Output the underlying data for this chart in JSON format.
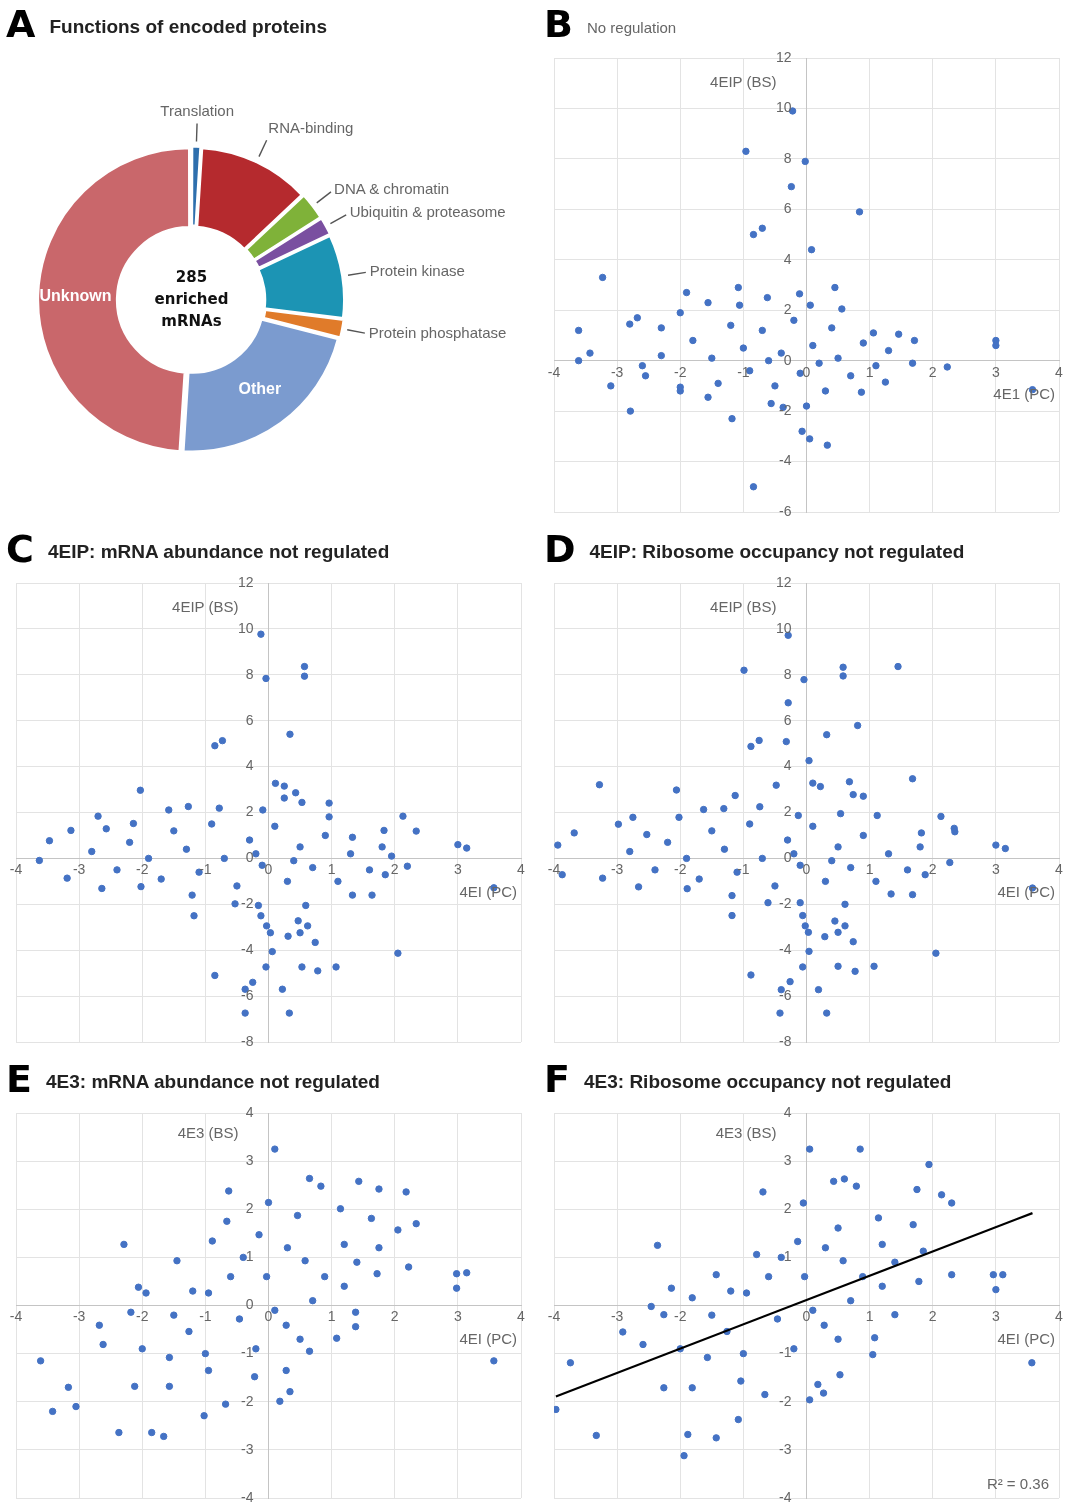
{
  "chart_data": [
    {
      "type": "donut",
      "title": "Functions of encoded proteins",
      "annotations": [
        "A",
        "285 enriched mRNAs"
      ],
      "categories": [
        "Translation",
        "RNA-binding",
        "DNA & chromatin",
        "Ubiquitin & proteasome",
        "Protein kinase",
        "Protein phosphatase",
        "Other",
        "Unknown"
      ],
      "values": [
        1,
        12,
        3,
        2,
        9,
        2,
        22,
        49
      ],
      "colors": [
        "#2e6fad",
        "#b52a2e",
        "#7fb239",
        "#7a4fa0",
        "#1c94b4",
        "#e07b2a",
        "#7b9bcf",
        "#c9676b"
      ]
    },
    {
      "type": "scatter",
      "subtitle": "No regulation",
      "annotations": [
        "B"
      ],
      "xlabel": "4E1 (PC)",
      "ylabel": "4EIP (BS)",
      "xlim": [
        -4,
        4
      ],
      "ylim": [
        -6,
        12
      ],
      "xticks": [
        -4,
        -3,
        -2,
        -1,
        0,
        1,
        2,
        3,
        4
      ],
      "yticks": [
        -6,
        -4,
        -2,
        0,
        2,
        4,
        6,
        8,
        10,
        12
      ],
      "grid": true,
      "marker": "circle",
      "series": [
        {
          "color": "#4472c4",
          "x": [
            -0.22,
            -0.96,
            -0.02,
            -0.24,
            0.84,
            -0.84,
            -0.7,
            0.08,
            -3.23,
            -1.08,
            -1.9,
            0.45,
            -0.11,
            3.0,
            3.0,
            3.58,
            2.23,
            -2.79,
            -1.18,
            -0.07,
            0.05,
            0.33,
            -0.84,
            -3.61,
            -3.61,
            -3.43,
            -3.1,
            -2.55,
            -2.0,
            -1.56,
            -0.56,
            -0.37,
            0,
            0.87,
            1.25,
            1.68,
            1.71,
            1.46,
            1.06,
            0.56,
            0.06,
            -0.62,
            -1.06,
            -1.56,
            -2.0,
            -2.3,
            -2.68,
            -2.8,
            -2.3,
            -2.0,
            -1.8,
            -1.5,
            -1.4,
            -1.2,
            -1.0,
            -0.9,
            -0.7,
            -0.5,
            -0.4,
            -0.2,
            -0.1,
            0.1,
            0.3,
            0.4,
            0.5,
            0.7,
            0.9,
            1.1,
            1.3,
            -2.6,
            0.2,
            -0.6
          ],
          "values": [
            9.9,
            8.3,
            7.9,
            6.9,
            5.9,
            5.0,
            5.25,
            4.4,
            3.3,
            2.9,
            2.7,
            2.9,
            2.65,
            0.8,
            0.6,
            -1.15,
            -0.25,
            -2.0,
            -2.3,
            -2.8,
            -3.1,
            -3.35,
            -5.0,
            1.2,
            0.0,
            0.3,
            -1.0,
            -0.6,
            -1.2,
            -1.45,
            -1.7,
            -1.85,
            -1.8,
            -1.25,
            -0.85,
            -0.1,
            0.8,
            1.05,
            1.1,
            2.05,
            2.2,
            2.5,
            2.2,
            2.3,
            1.9,
            1.3,
            1.7,
            1.45,
            0.2,
            -1.05,
            0.8,
            0.1,
            -0.9,
            1.4,
            0.5,
            -0.4,
            1.2,
            -1.0,
            0.3,
            1.6,
            -0.5,
            0.6,
            -1.2,
            1.3,
            0.1,
            -0.6,
            0.7,
            -0.2,
            0.4,
            -0.2,
            -0.1,
            0.0
          ]
        }
      ]
    },
    {
      "type": "scatter",
      "title": "4EIP: mRNA abundance not regulated",
      "annotations": [
        "C"
      ],
      "xlabel": "4EI (PC)",
      "ylabel": "4EIP (BS)",
      "xlim": [
        -4,
        4
      ],
      "ylim": [
        -8,
        12
      ],
      "xticks": [
        -4,
        -3,
        -2,
        -1,
        0,
        1,
        2,
        3,
        4
      ],
      "yticks": [
        -8,
        -6,
        -4,
        -2,
        0,
        2,
        4,
        6,
        8,
        10,
        12
      ],
      "grid": true,
      "marker": "circle",
      "series": [
        {
          "color": "#4472c4",
          "x": [
            -0.12,
            0.57,
            0.57,
            -0.04,
            0.34,
            -0.85,
            -0.73,
            -2.03,
            0.11,
            0.25,
            0.25,
            0.43,
            0.53,
            0.96,
            2.13,
            2.34,
            1.83,
            3.0,
            3.14,
            3.57,
            2.05,
            -1.18,
            -0.12,
            -0.03,
            0.03,
            0.47,
            0.62,
            0.31,
            0.5,
            0.74,
            0.06,
            -0.04,
            0.53,
            0.78,
            1.07,
            -0.85,
            -0.25,
            -0.37,
            0.22,
            -0.37,
            0.33,
            -3.63,
            -3.47,
            -3.19,
            -2.64,
            -2.7,
            -2.57,
            -2.02,
            -1.21,
            -0.53,
            -0.16,
            0.59,
            1.33,
            1.64,
            1.85,
            2.2,
            1.95,
            1.33,
            0.96,
            -0.09,
            -0.78,
            -1.27,
            -1.58,
            -2.14,
            -3.13,
            -2.8,
            -2.4,
            -2.2,
            -1.9,
            -1.7,
            -1.5,
            -1.3,
            -1.1,
            -0.9,
            -0.7,
            -0.5,
            -0.3,
            -0.1,
            0.1,
            0.3,
            0.5,
            0.7,
            0.9,
            1.1,
            1.3,
            1.6,
            1.8,
            -0.2,
            0.4
          ],
          "values": [
            9.77,
            8.36,
            7.94,
            7.84,
            5.41,
            4.91,
            5.13,
            2.97,
            3.27,
            3.15,
            2.63,
            2.86,
            2.44,
            2.41,
            1.84,
            1.19,
            1.22,
            0.6,
            0.45,
            -1.28,
            -4.13,
            -2.5,
            -2.5,
            -2.94,
            -3.24,
            -2.72,
            -2.94,
            -3.39,
            -3.24,
            -3.66,
            -4.06,
            -4.73,
            -4.73,
            -4.9,
            -4.73,
            -5.1,
            -5.4,
            -5.7,
            -5.7,
            -6.74,
            -6.74,
            -0.09,
            0.77,
            -0.86,
            -1.31,
            1.84,
            1.29,
            -1.23,
            -1.6,
            -1.98,
            -2.05,
            -2.05,
            -1.6,
            -1.6,
            -0.71,
            -0.34,
            0.1,
            0.92,
            1.81,
            2.11,
            2.19,
            2.26,
            2.11,
            1.52,
            1.22,
            0.3,
            -0.5,
            0.7,
            0.0,
            -0.9,
            1.2,
            0.4,
            -0.6,
            1.5,
            0.0,
            -1.2,
            0.8,
            -0.3,
            1.4,
            -1.0,
            0.5,
            -0.4,
            1.0,
            -1.0,
            0.2,
            -0.5,
            0.5,
            0.2,
            -0.1
          ]
        }
      ]
    },
    {
      "type": "scatter",
      "title": "4EIP: Ribosome occupancy not regulated",
      "annotations": [
        "D"
      ],
      "xlabel": "4EI (PC)",
      "ylabel": "4EIP (BS)",
      "xlim": [
        -4,
        4
      ],
      "ylim": [
        -8,
        12
      ],
      "xticks": [
        -4,
        -3,
        -2,
        -1,
        0,
        1,
        2,
        3,
        4
      ],
      "yticks": [
        -8,
        -6,
        -4,
        -2,
        0,
        2,
        4,
        6,
        8,
        10,
        12
      ],
      "grid": true,
      "marker": "circle",
      "series": [
        {
          "color": "#4472c4",
          "x": [
            -0.29,
            -0.99,
            0.58,
            0.58,
            1.45,
            -0.04,
            -0.29,
            0.81,
            0.32,
            -0.88,
            -0.75,
            -0.32,
            0.04,
            -3.28,
            -2.06,
            -0.48,
            -1.13,
            0.1,
            0.22,
            0.68,
            1.68,
            0.74,
            0.9,
            2.13,
            2.34,
            2.35,
            3.0,
            3.15,
            3.58,
            2.05,
            -1.18,
            -0.06,
            -0.02,
            0.03,
            0.29,
            0.45,
            0.61,
            0.5,
            0.74,
            0.04,
            -0.06,
            0.5,
            0.77,
            1.07,
            -0.88,
            -0.26,
            -0.4,
            0.19,
            -0.42,
            0.32,
            -3.94,
            -3.68,
            -3.87,
            -3.23,
            -2.66,
            -2.98,
            -2.75,
            -2.53,
            -1.89,
            -1.18,
            -0.61,
            -0.1,
            0.61,
            1.34,
            1.68,
            1.88,
            2.27,
            1.82,
            1.12,
            0.54,
            -0.13,
            -0.74,
            -1.31,
            -1.63,
            -2.02,
            -2.8,
            -2.4,
            -2.2,
            -1.9,
            -1.7,
            -1.5,
            -1.3,
            -1.1,
            -0.9,
            -0.7,
            -0.5,
            -0.3,
            -0.1,
            0.1,
            0.3,
            0.5,
            0.7,
            0.9,
            1.1,
            1.3,
            1.6,
            1.8,
            -0.2,
            0.4
          ],
          "values": [
            9.72,
            8.2,
            8.33,
            7.95,
            8.36,
            7.79,
            6.78,
            5.79,
            5.39,
            4.88,
            5.14,
            5.09,
            4.26,
            3.21,
            2.98,
            3.19,
            2.74,
            3.28,
            3.13,
            3.34,
            3.47,
            2.78,
            2.71,
            1.83,
            1.31,
            1.16,
            0.58,
            0.43,
            -1.29,
            -4.13,
            -2.49,
            -2.49,
            -2.94,
            -3.22,
            -3.41,
            -2.73,
            -2.94,
            -3.22,
            -3.63,
            -4.05,
            -4.73,
            -4.7,
            -4.92,
            -4.7,
            -5.08,
            -5.37,
            -5.72,
            -5.72,
            -6.74,
            -6.74,
            0.58,
            1.11,
            -0.71,
            -0.86,
            -1.24,
            1.49,
            1.79,
            1.04,
            -1.32,
            -1.62,
            -1.93,
            -1.93,
            -2.0,
            -1.55,
            -1.58,
            -0.71,
            -0.18,
            1.11,
            1.87,
            1.95,
            1.87,
            2.25,
            2.17,
            2.13,
            1.79,
            0.3,
            -0.5,
            0.7,
            0.0,
            -0.9,
            1.2,
            0.4,
            -0.6,
            1.5,
            0.0,
            -1.2,
            0.8,
            -0.3,
            1.4,
            -1.0,
            0.5,
            -0.4,
            1.0,
            -1.0,
            0.2,
            -0.5,
            0.5,
            0.2,
            -0.1
          ]
        }
      ]
    },
    {
      "type": "scatter",
      "title": "4E3: mRNA abundance not regulated",
      "annotations": [
        "E"
      ],
      "xlabel": "4EI (PC)",
      "ylabel": "4E3 (BS)",
      "xlim": [
        -4,
        4
      ],
      "ylim": [
        -4,
        4
      ],
      "xticks": [
        -4,
        -3,
        -2,
        -1,
        0,
        1,
        2,
        3,
        4
      ],
      "yticks": [
        -4,
        -3,
        -2,
        -1,
        0,
        1,
        2,
        3,
        4
      ],
      "grid": true,
      "marker": "circle",
      "series": [
        {
          "color": "#4472c4",
          "x": [
            0.1,
            -0.63,
            0,
            0.65,
            0.83,
            1.43,
            1.75,
            2.18,
            2.34,
            2.05,
            2.22,
            2.98,
            3.14,
            2.98,
            3.57,
            -2.29,
            -0.66,
            -2.06,
            1.38,
            -3.42,
            -2.37,
            -1.85,
            -1.66,
            -3.61,
            -3.17,
            -3.05,
            -1.02,
            -0.68,
            0.18,
            0.34,
            -2.68,
            -2.62,
            -2.12,
            -1.57,
            -0.95,
            -0.22,
            0.28,
            0.65,
            1.08,
            1.38,
            1.72,
            1.75,
            1.63,
            1.14,
            0.46,
            -0.15,
            -0.89,
            -1.45,
            -1.94,
            -2.18,
            -0.95,
            -0.03,
            0.58,
            0.89,
            -0.46,
            0.28,
            -1.26,
            -1.57,
            1.2,
            -2.0,
            -1.5,
            -0.6,
            -0.2,
            0.3,
            0.7,
            1.2,
            -1.0,
            0.1,
            -0.4,
            1.4,
            -1.2,
            0.5
          ],
          "values": [
            3.25,
            2.38,
            2.14,
            2.64,
            2.48,
            2.58,
            2.42,
            2.36,
            1.7,
            1.57,
            0.8,
            0.66,
            0.68,
            0.36,
            -1.15,
            1.27,
            1.75,
            0.38,
            -0.44,
            -2.2,
            -2.64,
            -2.64,
            -2.72,
            -1.15,
            -1.7,
            -2.1,
            -2.29,
            -2.05,
            -1.99,
            -1.79,
            -0.41,
            -0.81,
            -1.68,
            -1.68,
            -1.35,
            -1.48,
            -1.35,
            -0.95,
            -0.68,
            -0.14,
            0.66,
            1.2,
            1.81,
            2.01,
            1.87,
            1.47,
            1.34,
            0.93,
            0.26,
            -0.14,
            0.26,
            0.6,
            0.93,
            0.6,
            -0.28,
            -0.41,
            -0.54,
            -1.08,
            1.27,
            -0.9,
            -0.2,
            0.6,
            -0.9,
            1.2,
            0.1,
            0.4,
            -1.0,
            -0.1,
            1.0,
            0.9,
            0.3,
            -0.7
          ]
        }
      ]
    },
    {
      "type": "scatter",
      "title": "4E3: Ribosome occupancy not regulated",
      "annotations": [
        "F",
        "R² = 0.36"
      ],
      "xlabel": "4EI (PC)",
      "ylabel": "4E3 (BS)",
      "xlim": [
        -4,
        4
      ],
      "ylim": [
        -4,
        4
      ],
      "xticks": [
        -4,
        -3,
        -2,
        {
          "value": -1,
          "label": null
        },
        0,
        1,
        2,
        3,
        4
      ],
      "yticks": [
        -4,
        -3,
        -2,
        -1,
        1,
        2,
        3,
        4
      ],
      "grid": true,
      "marker": "circle",
      "series": [
        {
          "color": "#4472c4",
          "x": [
            0.05,
            0.85,
            1.94,
            0.43,
            0.6,
            0.79,
            -0.69,
            -0.05,
            2.3,
            2.14,
            1.75,
            -2.36,
            2.3,
            2.96,
            3.11,
            3.0,
            3.57,
            -2.14,
            -2.46,
            1.05,
            -3.33,
            -1.94,
            -1.88,
            -1.43,
            -1.08,
            -3.97,
            -3.74,
            0.05,
            0.27,
            -2.91,
            -2.59,
            -2.26,
            -1.81,
            -1.04,
            -0.66,
            0.18,
            0.53,
            1.08,
            1.4,
            1.78,
            1.85,
            1.69,
            1.14,
            0.5,
            -0.14,
            -0.79,
            -1.43,
            -1.81,
            -2.26,
            -0.95,
            -0.03,
            0.58,
            0.89,
            -0.46,
            0.28,
            -1.26,
            -1.57,
            1.2,
            -2.0,
            -1.5,
            -0.6,
            -0.2,
            0.3,
            0.7,
            1.2,
            -1.0,
            0.1,
            -0.4,
            1.4,
            -1.2,
            0.5
          ],
          "values": [
            3.25,
            3.25,
            2.93,
            2.58,
            2.63,
            2.48,
            2.36,
            2.13,
            2.13,
            2.3,
            2.41,
            1.25,
            0.64,
            0.64,
            0.64,
            0.33,
            -1.19,
            0.36,
            -0.02,
            -1.02,
            -2.7,
            -3.12,
            -2.68,
            -2.75,
            -2.37,
            -2.16,
            -1.19,
            -1.96,
            -1.82,
            -0.55,
            -0.81,
            -1.71,
            -1.71,
            -1.57,
            -1.85,
            -1.64,
            -1.44,
            -0.67,
            -0.19,
            0.5,
            1.13,
            1.68,
            1.82,
            1.61,
            1.33,
            1.06,
            0.64,
            0.16,
            -0.19,
            0.26,
            0.6,
            0.93,
            0.6,
            -0.28,
            -0.41,
            -0.54,
            -1.08,
            1.27,
            -0.9,
            -0.2,
            0.6,
            -0.9,
            1.2,
            0.1,
            0.4,
            -1.0,
            -0.1,
            1.0,
            0.9,
            0.3,
            -0.7
          ]
        },
        {
          "type": "line",
          "color": "#000000",
          "marker": "none",
          "x": [
            -3.97,
            3.58
          ],
          "values": [
            -1.89,
            1.92
          ]
        }
      ]
    }
  ]
}
